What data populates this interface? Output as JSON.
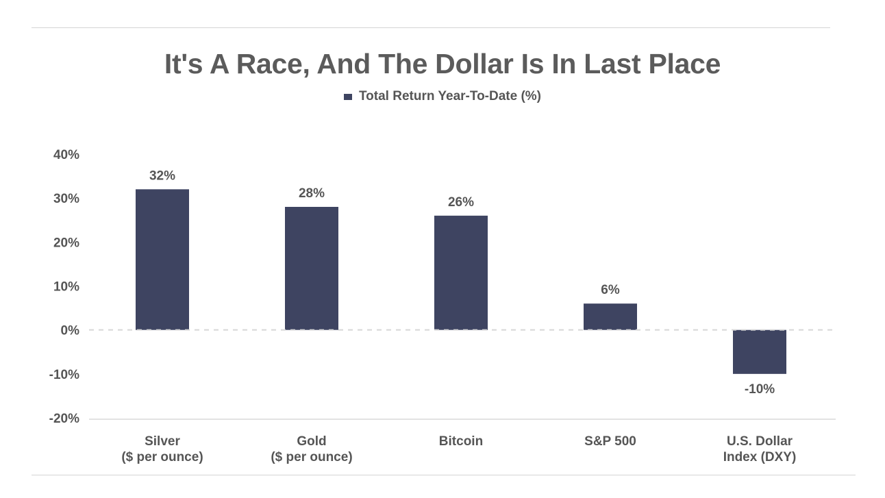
{
  "chart_data": {
    "type": "bar",
    "title": "It's A Race, And The Dollar Is In Last Place",
    "legend": [
      "Total Return Year-To-Date (%)"
    ],
    "categories": [
      [
        "Silver",
        "($ per ounce)"
      ],
      [
        "Gold",
        "($ per ounce)"
      ],
      [
        "Bitcoin"
      ],
      [
        "S&P 500"
      ],
      [
        "U.S. Dollar",
        "Index (DXY)"
      ]
    ],
    "series": [
      {
        "name": "Total Return Year-To-Date (%)",
        "values": [
          32,
          28,
          26,
          6,
          -10
        ],
        "color": "#3e4461"
      }
    ],
    "data_labels": [
      "32%",
      "28%",
      "26%",
      "6%",
      "-10%"
    ],
    "ylim": [
      -20,
      40
    ],
    "yticks": [
      "40%",
      "30%",
      "20%",
      "10%",
      "0%",
      "-10%",
      "-20%"
    ],
    "ytick_values": [
      40,
      30,
      20,
      10,
      0,
      -10,
      -20
    ],
    "grid": false,
    "zero_line": "dashed",
    "legend_position": "top"
  }
}
